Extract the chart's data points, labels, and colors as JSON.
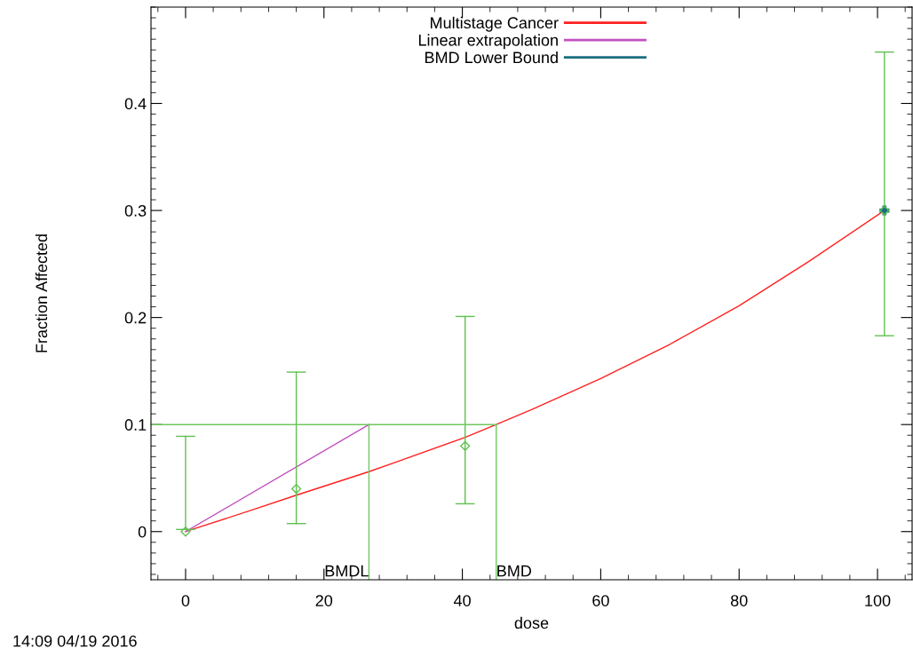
{
  "chart_data": {
    "type": "line",
    "xlabel": "dose",
    "ylabel": "Fraction Affected",
    "xlim": [
      -5,
      105
    ],
    "xticks": [
      0,
      20,
      40,
      60,
      80,
      100
    ],
    "ylim": [
      -0.045,
      0.49
    ],
    "yticks": [
      0,
      0.1,
      0.2,
      0.3,
      0.4
    ],
    "grid": false,
    "legend": "top",
    "series": [
      {
        "name": "Multistage Cancer",
        "color": "#ff2020",
        "x": [
          0,
          10,
          16,
          26.5,
          30,
          40.4,
          44.9,
          50,
          60,
          70,
          80,
          90,
          101
        ],
        "values": [
          0,
          0.021,
          0.034,
          0.056,
          0.064,
          0.088,
          0.1,
          0.114,
          0.143,
          0.175,
          0.211,
          0.252,
          0.3
        ]
      },
      {
        "name": "Linear extrapolation",
        "color": "#c050c0",
        "x": [
          0,
          26.5
        ],
        "values": [
          0,
          0.1
        ]
      },
      {
        "name": "BMD Lower Bound",
        "type": "scatter",
        "marker": "cross",
        "color": "#1a6f80",
        "x": [
          101
        ],
        "values": [
          0.3
        ]
      },
      {
        "type": "scatter",
        "marker": "diamond",
        "color": "#60c050",
        "x": [
          0,
          16,
          40.4,
          101
        ],
        "values": [
          0,
          0.04,
          0.08,
          0.3
        ],
        "errors": [
          [
            0.002,
            0.089
          ],
          [
            0.0075,
            0.149
          ],
          [
            0.026,
            0.201
          ],
          [
            0.183,
            0.448
          ]
        ]
      },
      {
        "color": "#70c860",
        "x": [
          -5,
          44.9
        ],
        "values": [
          0.1,
          0.1
        ]
      },
      {
        "color": "#70c860",
        "x": [
          26.5,
          26.5
        ],
        "values": [
          -0.045,
          0.1
        ]
      },
      {
        "color": "#70c860",
        "x": [
          44.9,
          44.9
        ],
        "values": [
          -0.045,
          0.1
        ]
      }
    ],
    "annotations": [
      {
        "text": "BMDL",
        "x": 26.5,
        "y": -0.045
      },
      {
        "text": "BMD",
        "x": 44.9,
        "y": -0.045
      },
      "14:09 04/19 2016"
    ]
  }
}
